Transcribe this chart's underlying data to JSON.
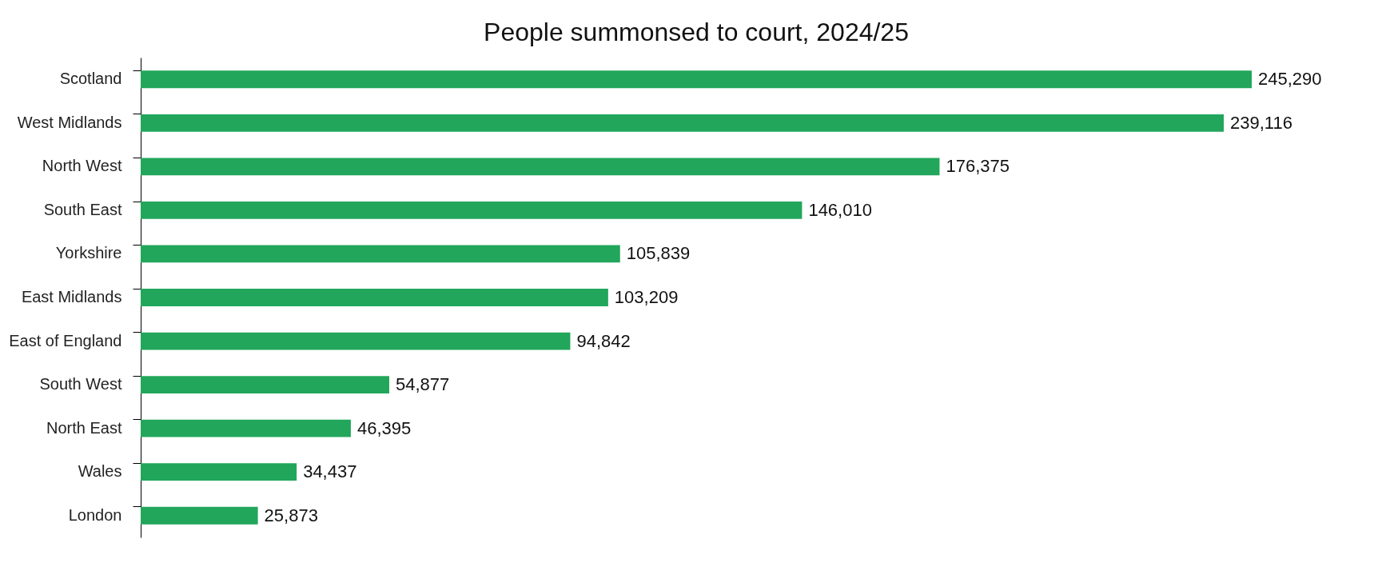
{
  "chart_data": {
    "type": "bar",
    "orientation": "horizontal",
    "title": "People summonsed to court, 2024/25",
    "categories": [
      "Scotland",
      "West Midlands",
      "North West",
      "South East",
      "Yorkshire",
      "East Midlands",
      "East of England",
      "South West",
      "North East",
      "Wales",
      "London"
    ],
    "values": [
      245290,
      239116,
      176375,
      146010,
      105839,
      103209,
      94842,
      54877,
      46395,
      34437,
      25873
    ],
    "value_labels": [
      "245,290",
      "239,116",
      "176,375",
      "146,010",
      "105,839",
      "103,209",
      "94,842",
      "54,877",
      "46,395",
      "34,437",
      "25,873"
    ],
    "color": "#21a65b"
  }
}
